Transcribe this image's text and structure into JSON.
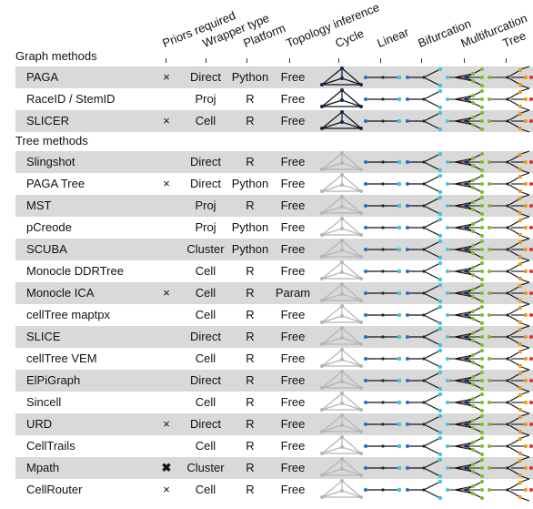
{
  "headers": [
    {
      "id": "priors",
      "label": "Priors required"
    },
    {
      "id": "wrapper",
      "label": "Wrapper type"
    },
    {
      "id": "platform",
      "label": "Platform"
    },
    {
      "id": "topology",
      "label": "Topology inference"
    },
    {
      "id": "cycle",
      "label": "Cycle"
    },
    {
      "id": "linear",
      "label": "Linear"
    },
    {
      "id": "bifurcation",
      "label": "Bifurcation"
    },
    {
      "id": "multifurcation",
      "label": "Multifurcation"
    },
    {
      "id": "tree",
      "label": "Tree"
    }
  ],
  "sections": [
    {
      "label": "Graph methods",
      "rows": [
        {
          "name": "PAGA",
          "priors": "×",
          "wrapper": "Direct",
          "platform": "Python",
          "topology": "Free",
          "cycle": "on"
        },
        {
          "name": "RaceID / StemID",
          "priors": "",
          "wrapper": "Proj",
          "platform": "R",
          "topology": "Free",
          "cycle": "on"
        },
        {
          "name": "SLICER",
          "priors": "×",
          "wrapper": "Cell",
          "platform": "R",
          "topology": "Free",
          "cycle": "on"
        }
      ]
    },
    {
      "label": "Tree methods",
      "rows": [
        {
          "name": "Slingshot",
          "priors": "",
          "wrapper": "Direct",
          "platform": "R",
          "topology": "Free",
          "cycle": "off"
        },
        {
          "name": "PAGA Tree",
          "priors": "×",
          "wrapper": "Direct",
          "platform": "Python",
          "topology": "Free",
          "cycle": "off"
        },
        {
          "name": "MST",
          "priors": "",
          "wrapper": "Proj",
          "platform": "R",
          "topology": "Free",
          "cycle": "off"
        },
        {
          "name": "pCreode",
          "priors": "",
          "wrapper": "Proj",
          "platform": "Python",
          "topology": "Free",
          "cycle": "off"
        },
        {
          "name": "SCUBA",
          "priors": "",
          "wrapper": "Cluster",
          "platform": "Python",
          "topology": "Free",
          "cycle": "off"
        },
        {
          "name": "Monocle DDRTree",
          "priors": "",
          "wrapper": "Cell",
          "platform": "R",
          "topology": "Free",
          "cycle": "off"
        },
        {
          "name": "Monocle ICA",
          "priors": "×",
          "wrapper": "Cell",
          "platform": "R",
          "topology": "Param",
          "cycle": "off"
        },
        {
          "name": "cellTree maptpx",
          "priors": "",
          "wrapper": "Cell",
          "platform": "R",
          "topology": "Free",
          "cycle": "off"
        },
        {
          "name": "SLICE",
          "priors": "",
          "wrapper": "Direct",
          "platform": "R",
          "topology": "Free",
          "cycle": "off"
        },
        {
          "name": "cellTree VEM",
          "priors": "",
          "wrapper": "Cell",
          "platform": "R",
          "topology": "Free",
          "cycle": "off"
        },
        {
          "name": "ElPiGraph",
          "priors": "",
          "wrapper": "Direct",
          "platform": "R",
          "topology": "Free",
          "cycle": "off"
        },
        {
          "name": "Sincell",
          "priors": "",
          "wrapper": "Cell",
          "platform": "R",
          "topology": "Free",
          "cycle": "off"
        },
        {
          "name": "URD",
          "priors": "×",
          "wrapper": "Direct",
          "platform": "R",
          "topology": "Free",
          "cycle": "off"
        },
        {
          "name": "CellTrails",
          "priors": "",
          "wrapper": "Cell",
          "platform": "R",
          "topology": "Free",
          "cycle": "off"
        },
        {
          "name": "Mpath",
          "priors": "✖",
          "wrapper": "Cluster",
          "platform": "R",
          "topology": "Free",
          "cycle": "off"
        },
        {
          "name": "CellRouter",
          "priors": "×",
          "wrapper": "Cell",
          "platform": "R",
          "topology": "Free",
          "cycle": "off"
        }
      ]
    }
  ],
  "colors": {
    "shade": "#d9d9d9",
    "line": "#111111",
    "dark_node": "#0b2a5b",
    "blue_node": "#1f6fd1",
    "cyan_node": "#3ec6e0",
    "green_node": "#7bbf2a",
    "orange_node": "#e69a1a",
    "red_node": "#e0302a",
    "faded": "#b5b5b5"
  }
}
